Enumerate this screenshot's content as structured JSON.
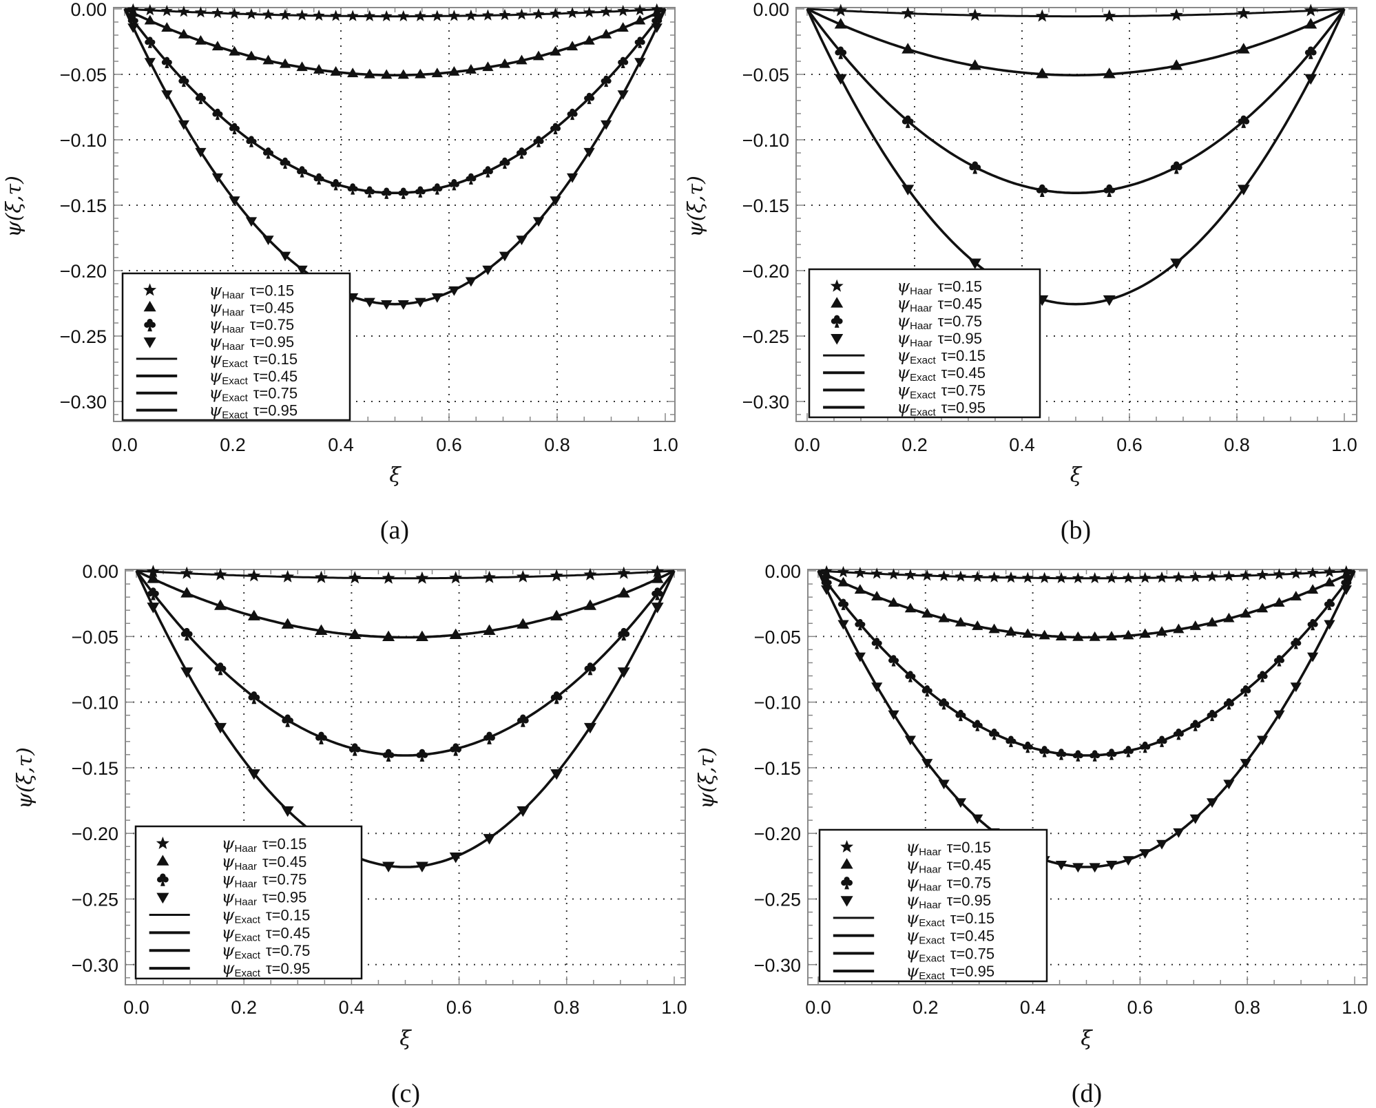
{
  "figure": {
    "panels": [
      "(a)",
      "(b)",
      "(c)",
      "(d)"
    ]
  },
  "chart_data": [
    {
      "type": "line",
      "panel": "(a)",
      "title": "",
      "xlabel": "ξ",
      "ylabel": "ψ(ξ,τ)",
      "xlim": [
        0,
        1
      ],
      "ylim": [
        -0.32,
        0
      ],
      "xticks": [
        "0.0",
        "0.2",
        "0.4",
        "0.6",
        "0.8",
        "1.0"
      ],
      "yticks": [
        "0.00",
        "-0.05",
        "-0.10",
        "-0.15",
        "-0.20",
        "-0.25",
        "-0.30"
      ],
      "grid": true,
      "legend_position": "lower-left",
      "marker_points": 32,
      "marker_x_formula": "(2i-1)/64",
      "series": [
        {
          "name": "ψHaar τ=0.15",
          "kind": "markers",
          "marker": "star",
          "tau": 0.15,
          "min_value": -0.0056
        },
        {
          "name": "ψHaar τ=0.45",
          "kind": "markers",
          "marker": "triangle-up",
          "tau": 0.45,
          "min_value": -0.0506
        },
        {
          "name": "ψHaar τ=0.75",
          "kind": "markers",
          "marker": "club",
          "tau": 0.75,
          "min_value": -0.1406
        },
        {
          "name": "ψHaar τ=0.95",
          "kind": "markers",
          "marker": "triangle-down",
          "tau": 0.95,
          "min_value": -0.2256
        },
        {
          "name": "ψExact τ=0.15",
          "kind": "line",
          "tau": 0.15
        },
        {
          "name": "ψExact τ=0.45",
          "kind": "line",
          "tau": 0.45
        },
        {
          "name": "ψExact τ=0.75",
          "kind": "line",
          "tau": 0.75
        },
        {
          "name": "ψExact τ=0.95",
          "kind": "line",
          "tau": 0.95
        }
      ],
      "model": "ψ = -τ²·ξ·(1-ξ)"
    },
    {
      "type": "line",
      "panel": "(b)",
      "xlabel": "ξ",
      "ylabel": "ψ(ξ,τ)",
      "xlim": [
        0,
        1
      ],
      "ylim": [
        -0.32,
        0
      ],
      "xticks": [
        "0.0",
        "0.2",
        "0.4",
        "0.6",
        "0.8",
        "1.0"
      ],
      "yticks": [
        "0.00",
        "-0.05",
        "-0.10",
        "-0.15",
        "-0.20",
        "-0.25",
        "-0.30"
      ],
      "grid": true,
      "legend_position": "lower-left",
      "marker_points": 8,
      "marker_x": [
        0.0625,
        0.1875,
        0.3125,
        0.4375,
        0.5625,
        0.6875,
        0.8125,
        0.9375
      ],
      "series": [
        {
          "name": "ψHaar τ=0.15",
          "kind": "markers",
          "marker": "star",
          "tau": 0.15,
          "values": [
            -0.0013,
            -0.0034,
            -0.0048,
            -0.0055,
            -0.0055,
            -0.0048,
            -0.0034,
            -0.0013
          ]
        },
        {
          "name": "ψHaar τ=0.45",
          "kind": "markers",
          "marker": "triangle-up",
          "tau": 0.45,
          "values": [
            -0.0119,
            -0.0309,
            -0.0435,
            -0.0498,
            -0.0498,
            -0.0435,
            -0.0309,
            -0.0119
          ]
        },
        {
          "name": "ψHaar τ=0.75",
          "kind": "markers",
          "marker": "club",
          "tau": 0.75,
          "values": [
            -0.033,
            -0.0857,
            -0.1208,
            -0.1384,
            -0.1384,
            -0.1208,
            -0.0857,
            -0.033
          ]
        },
        {
          "name": "ψHaar τ=0.95",
          "kind": "markers",
          "marker": "triangle-down",
          "tau": 0.95,
          "values": [
            -0.0529,
            -0.1375,
            -0.1939,
            -0.222,
            -0.222,
            -0.1939,
            -0.1375,
            -0.0529
          ]
        },
        {
          "name": "ψExact τ=0.15",
          "kind": "line",
          "tau": 0.15
        },
        {
          "name": "ψExact τ=0.45",
          "kind": "line",
          "tau": 0.45
        },
        {
          "name": "ψExact τ=0.75",
          "kind": "line",
          "tau": 0.75
        },
        {
          "name": "ψExact τ=0.95",
          "kind": "line",
          "tau": 0.95
        }
      ],
      "model": "ψ = -τ²·ξ·(1-ξ)"
    },
    {
      "type": "line",
      "panel": "(c)",
      "xlabel": "ξ",
      "ylabel": "ψ(ξ,τ)",
      "xlim": [
        0,
        1
      ],
      "ylim": [
        -0.32,
        0
      ],
      "xticks": [
        "0.0",
        "0.2",
        "0.4",
        "0.6",
        "0.8",
        "1.0"
      ],
      "yticks": [
        "0.00",
        "-0.05",
        "-0.10",
        "-0.15",
        "-0.20",
        "-0.25",
        "-0.30"
      ],
      "grid": true,
      "legend_position": "lower-left",
      "marker_points": 16,
      "marker_x_formula": "(2i-1)/32",
      "series": [
        {
          "name": "ψHaar τ=0.15",
          "kind": "markers",
          "marker": "star",
          "tau": 0.15
        },
        {
          "name": "ψHaar τ=0.45",
          "kind": "markers",
          "marker": "triangle-up",
          "tau": 0.45
        },
        {
          "name": "ψHaar τ=0.75",
          "kind": "markers",
          "marker": "club",
          "tau": 0.75
        },
        {
          "name": "ψHaar τ=0.95",
          "kind": "markers",
          "marker": "triangle-down",
          "tau": 0.95
        },
        {
          "name": "ψExact τ=0.15",
          "kind": "line",
          "tau": 0.15
        },
        {
          "name": "ψExact τ=0.45",
          "kind": "line",
          "tau": 0.45
        },
        {
          "name": "ψExact τ=0.75",
          "kind": "line",
          "tau": 0.75
        },
        {
          "name": "ψExact τ=0.95",
          "kind": "line",
          "tau": 0.95
        }
      ],
      "model": "ψ = -τ²·ξ·(1-ξ)"
    },
    {
      "type": "line",
      "panel": "(d)",
      "xlabel": "ξ",
      "ylabel": "ψ(ξ,τ)",
      "xlim": [
        0,
        1
      ],
      "ylim": [
        -0.32,
        0
      ],
      "xticks": [
        "0.0",
        "0.2",
        "0.4",
        "0.6",
        "0.8",
        "1.0"
      ],
      "yticks": [
        "0.00",
        "-0.05",
        "-0.10",
        "-0.15",
        "-0.20",
        "-0.25",
        "-0.30"
      ],
      "grid": true,
      "legend_position": "lower-left",
      "marker_points": 32,
      "marker_x_formula": "(2i-1)/64",
      "series": [
        {
          "name": "ψHaar τ=0.15",
          "kind": "markers",
          "marker": "star",
          "tau": 0.15
        },
        {
          "name": "ψHaar τ=0.45",
          "kind": "markers",
          "marker": "triangle-up",
          "tau": 0.45
        },
        {
          "name": "ψHaar τ=0.75",
          "kind": "markers",
          "marker": "club",
          "tau": 0.75
        },
        {
          "name": "ψHaar τ=0.95",
          "kind": "markers",
          "marker": "triangle-down",
          "tau": 0.95
        },
        {
          "name": "ψExact τ=0.15",
          "kind": "line",
          "tau": 0.15
        },
        {
          "name": "ψExact τ=0.45",
          "kind": "line",
          "tau": 0.45
        },
        {
          "name": "ψExact τ=0.75",
          "kind": "line",
          "tau": 0.75
        },
        {
          "name": "ψExact τ=0.95",
          "kind": "line",
          "tau": 0.95
        }
      ],
      "model": "ψ = -τ²·ξ·(1-ξ)"
    }
  ],
  "legend": {
    "entries": [
      {
        "symbol": "star",
        "base": "ψ",
        "sub": "Haar",
        "tau": "τ=0.15"
      },
      {
        "symbol": "triangle-up",
        "base": "ψ",
        "sub": "Haar",
        "tau": "τ=0.45"
      },
      {
        "symbol": "club",
        "base": "ψ",
        "sub": "Haar",
        "tau": "τ=0.75"
      },
      {
        "symbol": "triangle-down",
        "base": "ψ",
        "sub": "Haar",
        "tau": "τ=0.95"
      },
      {
        "symbol": "line-thin",
        "base": "ψ",
        "sub": "Exact",
        "tau": "τ=0.15"
      },
      {
        "symbol": "line",
        "base": "ψ",
        "sub": "Exact",
        "tau": "τ=0.45"
      },
      {
        "symbol": "line",
        "base": "ψ",
        "sub": "Exact",
        "tau": "τ=0.75"
      },
      {
        "symbol": "line",
        "base": "ψ",
        "sub": "Exact",
        "tau": "τ=0.95"
      }
    ]
  },
  "colors": {
    "ink": "#111111",
    "frame": "#888888",
    "grid": "#333333",
    "background": "#ffffff"
  }
}
